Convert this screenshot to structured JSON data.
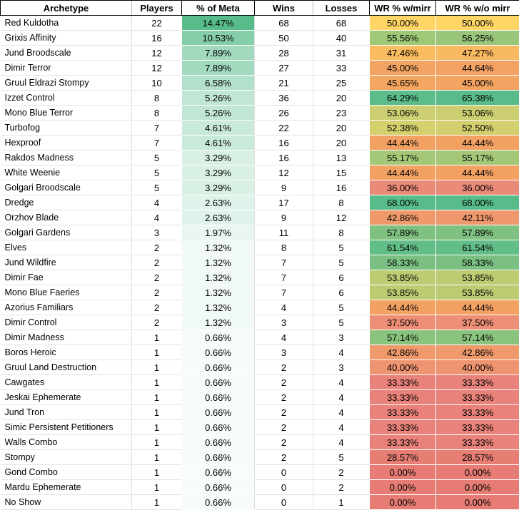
{
  "palette": {
    "scale_min_red": "#E67C73",
    "scale_mid_yellow": "#FFD666",
    "scale_max_green": "#57BB8A",
    "grid_line": "#E4E4E4",
    "header_border": "#000000",
    "text": "#000000"
  },
  "table": {
    "columns": [
      {
        "key": "archetype",
        "label": "Archetype"
      },
      {
        "key": "players",
        "label": "Players"
      },
      {
        "key": "meta",
        "label": "% of Meta"
      },
      {
        "key": "wins",
        "label": "Wins"
      },
      {
        "key": "losses",
        "label": "Losses"
      },
      {
        "key": "wr_mirr",
        "label": "WR % w/mirr"
      },
      {
        "key": "wr_no_mirr",
        "label": "WR % w/o mirr"
      }
    ],
    "rows": [
      {
        "archetype": "Red Kuldotha",
        "players": "22",
        "meta": "14.47%",
        "wins": "68",
        "losses": "68",
        "wr_mirr": "50.00%",
        "wr_no_mirr": "50.00%",
        "meta_color": "#57BB8A",
        "wr_mirr_color": "#FFD666",
        "wr_no_mirr_color": "#FFD666"
      },
      {
        "archetype": "Grixis Affinity",
        "players": "16",
        "meta": "10.53%",
        "wins": "50",
        "losses": "40",
        "wr_mirr": "55.56%",
        "wr_no_mirr": "56.25%",
        "meta_color": "#85CEAA",
        "wr_mirr_color": "#A0C977",
        "wr_no_mirr_color": "#99C67B"
      },
      {
        "archetype": "Jund Broodscale",
        "players": "12",
        "meta": "7.89%",
        "wins": "28",
        "losses": "31",
        "wr_mirr": "47.46%",
        "wr_no_mirr": "47.27%",
        "meta_color": "#A3DABF",
        "wr_mirr_color": "#FABC5F",
        "wr_no_mirr_color": "#F9B960"
      },
      {
        "archetype": "Dimir Terror",
        "players": "12",
        "meta": "7.89%",
        "wins": "27",
        "losses": "33",
        "wr_mirr": "45.00%",
        "wr_no_mirr": "44.64%",
        "meta_color": "#A3DABF",
        "wr_mirr_color": "#F4A462",
        "wr_no_mirr_color": "#F3A263"
      },
      {
        "archetype": "Gruul Eldrazi Stompy",
        "players": "10",
        "meta": "6.58%",
        "wins": "21",
        "losses": "25",
        "wr_mirr": "45.65%",
        "wr_no_mirr": "45.00%",
        "meta_color": "#B3E0CA",
        "wr_mirr_color": "#F5A660",
        "wr_no_mirr_color": "#F4A462"
      },
      {
        "archetype": "Izzet Control",
        "players": "8",
        "meta": "5.26%",
        "wins": "36",
        "losses": "20",
        "wr_mirr": "64.29%",
        "wr_no_mirr": "65.38%",
        "meta_color": "#C2E6D4",
        "wr_mirr_color": "#5CBC8A",
        "wr_no_mirr_color": "#59BB8A"
      },
      {
        "archetype": "Mono Blue Terror",
        "players": "8",
        "meta": "5.26%",
        "wins": "26",
        "losses": "23",
        "wr_mirr": "53.06%",
        "wr_no_mirr": "53.06%",
        "meta_color": "#C2E6D4",
        "wr_mirr_color": "#CBCE71",
        "wr_no_mirr_color": "#CBCE71"
      },
      {
        "archetype": "Turbofog",
        "players": "7",
        "meta": "4.61%",
        "wins": "22",
        "losses": "20",
        "wr_mirr": "52.38%",
        "wr_no_mirr": "52.50%",
        "meta_color": "#C9E9DA",
        "wr_mirr_color": "#D4D06E",
        "wr_no_mirr_color": "#D3CF6F"
      },
      {
        "archetype": "Hexproof",
        "players": "7",
        "meta": "4.61%",
        "wins": "16",
        "losses": "20",
        "wr_mirr": "44.44%",
        "wr_no_mirr": "44.44%",
        "meta_color": "#C9E9DA",
        "wr_mirr_color": "#F2A163",
        "wr_no_mirr_color": "#F2A163"
      },
      {
        "archetype": "Rakdos Madness",
        "players": "5",
        "meta": "3.29%",
        "wins": "16",
        "losses": "13",
        "wr_mirr": "55.17%",
        "wr_no_mirr": "55.17%",
        "meta_color": "#D9F0E4",
        "wr_mirr_color": "#A5C878",
        "wr_no_mirr_color": "#A5C878"
      },
      {
        "archetype": "White Weenie",
        "players": "5",
        "meta": "3.29%",
        "wins": "12",
        "losses": "15",
        "wr_mirr": "44.44%",
        "wr_no_mirr": "44.44%",
        "meta_color": "#D9F0E4",
        "wr_mirr_color": "#F2A163",
        "wr_no_mirr_color": "#F2A163"
      },
      {
        "archetype": "Golgari Broodscale",
        "players": "5",
        "meta": "3.29%",
        "wins": "9",
        "losses": "16",
        "wr_mirr": "36.00%",
        "wr_no_mirr": "36.00%",
        "meta_color": "#D9F0E4",
        "wr_mirr_color": "#EA8A79",
        "wr_no_mirr_color": "#EA8A79"
      },
      {
        "archetype": "Dredge",
        "players": "4",
        "meta": "2.63%",
        "wins": "17",
        "losses": "8",
        "wr_mirr": "68.00%",
        "wr_no_mirr": "68.00%",
        "meta_color": "#E0F3EA",
        "wr_mirr_color": "#57BB8A",
        "wr_no_mirr_color": "#57BB8A"
      },
      {
        "archetype": "Orzhov Blade",
        "players": "4",
        "meta": "2.63%",
        "wins": "9",
        "losses": "12",
        "wr_mirr": "42.86%",
        "wr_no_mirr": "42.11%",
        "meta_color": "#E0F3EA",
        "wr_mirr_color": "#F09A6B",
        "wr_no_mirr_color": "#EF986D"
      },
      {
        "archetype": "Golgari Gardens",
        "players": "3",
        "meta": "1.97%",
        "wins": "11",
        "losses": "8",
        "wr_mirr": "57.89%",
        "wr_no_mirr": "57.89%",
        "meta_color": "#E8F6EF",
        "wr_mirr_color": "#7FC181",
        "wr_no_mirr_color": "#7FC181"
      },
      {
        "archetype": "Elves",
        "players": "2",
        "meta": "1.32%",
        "wins": "8",
        "losses": "5",
        "wr_mirr": "61.54%",
        "wr_no_mirr": "61.54%",
        "meta_color": "#F0F9F4",
        "wr_mirr_color": "#62BD87",
        "wr_no_mirr_color": "#62BD87"
      },
      {
        "archetype": "Jund Wildfire",
        "players": "2",
        "meta": "1.32%",
        "wins": "7",
        "losses": "5",
        "wr_mirr": "58.33%",
        "wr_no_mirr": "58.33%",
        "meta_color": "#F0F9F4",
        "wr_mirr_color": "#7BC082",
        "wr_no_mirr_color": "#7BC082"
      },
      {
        "archetype": "Dimir Fae",
        "players": "2",
        "meta": "1.32%",
        "wins": "7",
        "losses": "6",
        "wr_mirr": "53.85%",
        "wr_no_mirr": "53.85%",
        "meta_color": "#F0F9F4",
        "wr_mirr_color": "#BDCC73",
        "wr_no_mirr_color": "#BDCC73"
      },
      {
        "archetype": "Mono Blue Faeries",
        "players": "2",
        "meta": "1.32%",
        "wins": "7",
        "losses": "6",
        "wr_mirr": "53.85%",
        "wr_no_mirr": "53.85%",
        "meta_color": "#F0F9F4",
        "wr_mirr_color": "#BDCC73",
        "wr_no_mirr_color": "#BDCC73"
      },
      {
        "archetype": "Azorius Familiars",
        "players": "2",
        "meta": "1.32%",
        "wins": "4",
        "losses": "5",
        "wr_mirr": "44.44%",
        "wr_no_mirr": "44.44%",
        "meta_color": "#F0F9F4",
        "wr_mirr_color": "#F2A163",
        "wr_no_mirr_color": "#F2A163"
      },
      {
        "archetype": "Dimir Control",
        "players": "2",
        "meta": "1.32%",
        "wins": "3",
        "losses": "5",
        "wr_mirr": "37.50%",
        "wr_no_mirr": "37.50%",
        "meta_color": "#F0F9F4",
        "wr_mirr_color": "#ED8F76",
        "wr_no_mirr_color": "#ED8F76"
      },
      {
        "archetype": "Dimir Madness",
        "players": "1",
        "meta": "0.66%",
        "wins": "4",
        "losses": "3",
        "wr_mirr": "57.14%",
        "wr_no_mirr": "57.14%",
        "meta_color": "#F7FCFA",
        "wr_mirr_color": "#8AC37E",
        "wr_no_mirr_color": "#8AC37E"
      },
      {
        "archetype": "Boros Heroic",
        "players": "1",
        "meta": "0.66%",
        "wins": "3",
        "losses": "4",
        "wr_mirr": "42.86%",
        "wr_no_mirr": "42.86%",
        "meta_color": "#F7FCFA",
        "wr_mirr_color": "#F09A6B",
        "wr_no_mirr_color": "#F09A6B"
      },
      {
        "archetype": "Gruul Land Destruction",
        "players": "1",
        "meta": "0.66%",
        "wins": "2",
        "losses": "3",
        "wr_mirr": "40.00%",
        "wr_no_mirr": "40.00%",
        "meta_color": "#F7FCFA",
        "wr_mirr_color": "#EF9471",
        "wr_no_mirr_color": "#EF9471"
      },
      {
        "archetype": "Cawgates",
        "players": "1",
        "meta": "0.66%",
        "wins": "2",
        "losses": "4",
        "wr_mirr": "33.33%",
        "wr_no_mirr": "33.33%",
        "meta_color": "#F7FCFA",
        "wr_mirr_color": "#E8827A",
        "wr_no_mirr_color": "#E8827A"
      },
      {
        "archetype": "Jeskai Ephemerate",
        "players": "1",
        "meta": "0.66%",
        "wins": "2",
        "losses": "4",
        "wr_mirr": "33.33%",
        "wr_no_mirr": "33.33%",
        "meta_color": "#F7FCFA",
        "wr_mirr_color": "#E8827A",
        "wr_no_mirr_color": "#E8827A"
      },
      {
        "archetype": "Jund Tron",
        "players": "1",
        "meta": "0.66%",
        "wins": "2",
        "losses": "4",
        "wr_mirr": "33.33%",
        "wr_no_mirr": "33.33%",
        "meta_color": "#F7FCFA",
        "wr_mirr_color": "#E8827A",
        "wr_no_mirr_color": "#E8827A"
      },
      {
        "archetype": "Simic Persistent Petitioners",
        "players": "1",
        "meta": "0.66%",
        "wins": "2",
        "losses": "4",
        "wr_mirr": "33.33%",
        "wr_no_mirr": "33.33%",
        "meta_color": "#F7FCFA",
        "wr_mirr_color": "#E8827A",
        "wr_no_mirr_color": "#E8827A"
      },
      {
        "archetype": "Walls Combo",
        "players": "1",
        "meta": "0.66%",
        "wins": "2",
        "losses": "4",
        "wr_mirr": "33.33%",
        "wr_no_mirr": "33.33%",
        "meta_color": "#F7FCFA",
        "wr_mirr_color": "#E8827A",
        "wr_no_mirr_color": "#E8827A"
      },
      {
        "archetype": "Stompy",
        "players": "1",
        "meta": "0.66%",
        "wins": "2",
        "losses": "5",
        "wr_mirr": "28.57%",
        "wr_no_mirr": "28.57%",
        "meta_color": "#F7FCFA",
        "wr_mirr_color": "#E77E74",
        "wr_no_mirr_color": "#E77E74"
      },
      {
        "archetype": "Gond Combo",
        "players": "1",
        "meta": "0.66%",
        "wins": "0",
        "losses": "2",
        "wr_mirr": "0.00%",
        "wr_no_mirr": "0.00%",
        "meta_color": "#F7FCFA",
        "wr_mirr_color": "#E67C73",
        "wr_no_mirr_color": "#E67C73"
      },
      {
        "archetype": "Mardu Ephemerate",
        "players": "1",
        "meta": "0.66%",
        "wins": "0",
        "losses": "2",
        "wr_mirr": "0.00%",
        "wr_no_mirr": "0.00%",
        "meta_color": "#F7FCFA",
        "wr_mirr_color": "#E67C73",
        "wr_no_mirr_color": "#E67C73"
      },
      {
        "archetype": "No Show",
        "players": "1",
        "meta": "0.66%",
        "wins": "0",
        "losses": "1",
        "wr_mirr": "0.00%",
        "wr_no_mirr": "0.00%",
        "meta_color": "#F7FCFA",
        "wr_mirr_color": "#E67C73",
        "wr_no_mirr_color": "#E67C73"
      }
    ]
  }
}
